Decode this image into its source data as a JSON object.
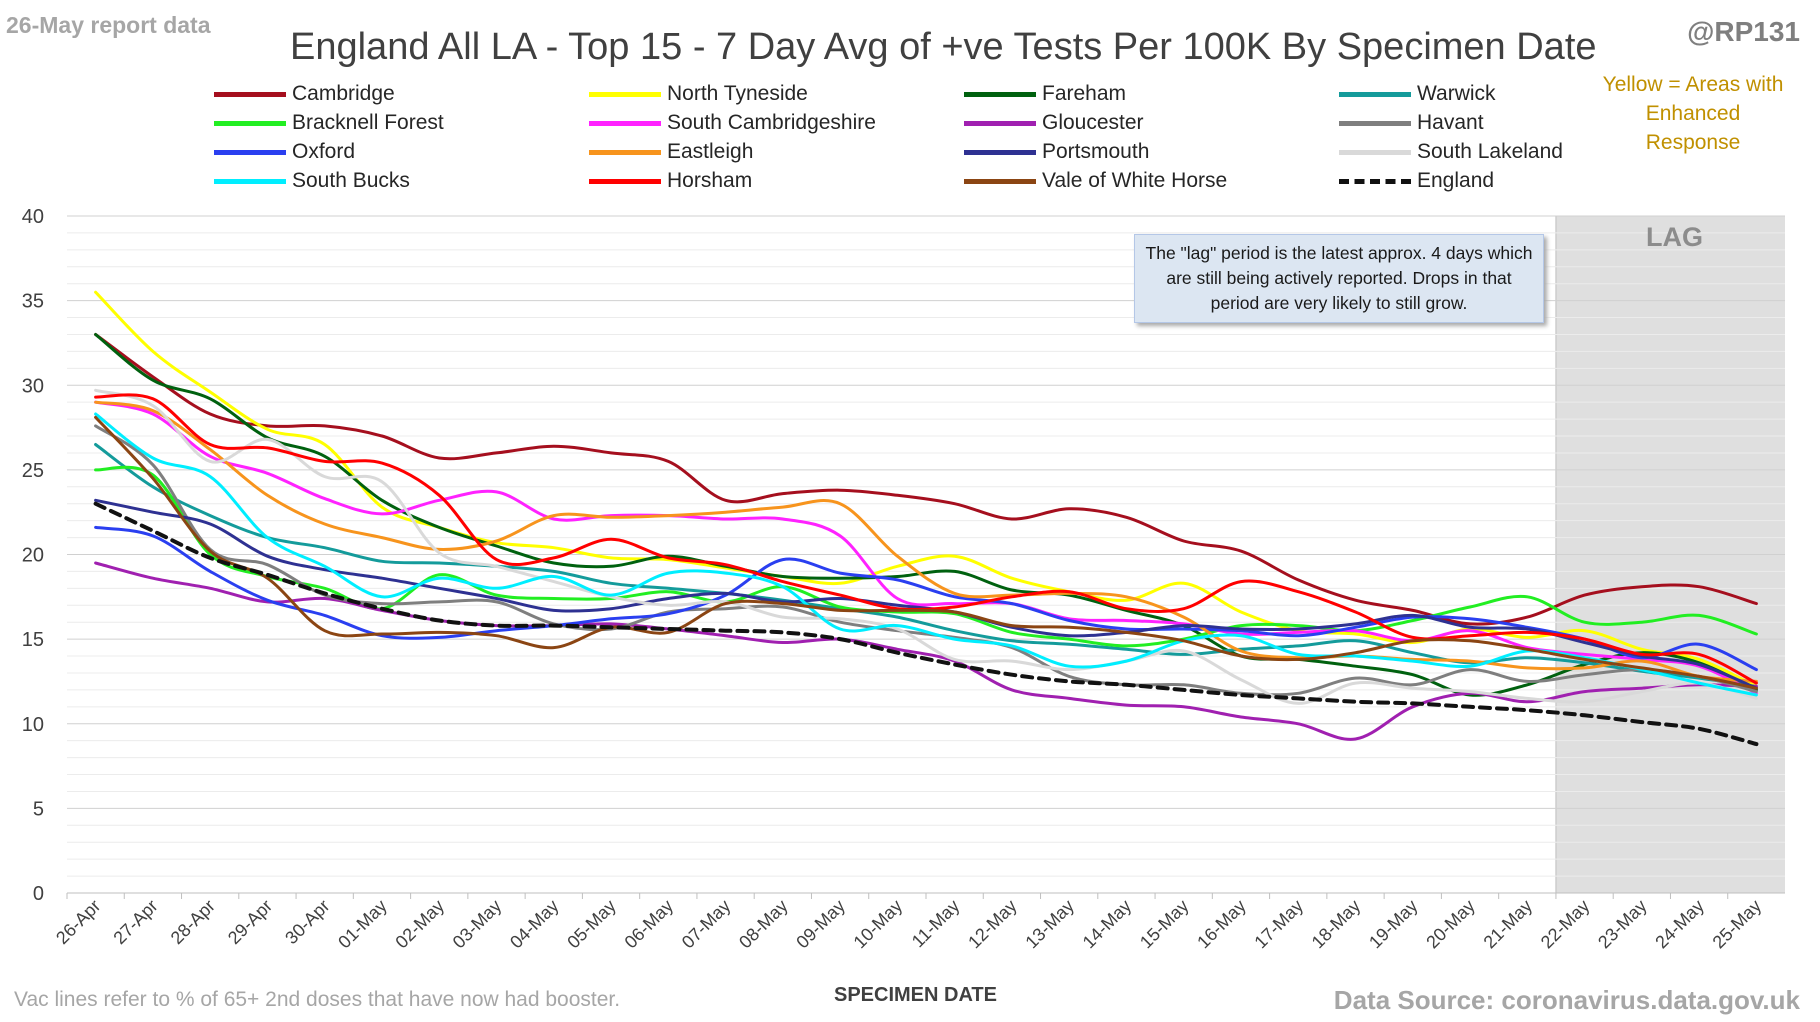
{
  "header": {
    "report_date": "26-May report data",
    "title": "England All LA - Top 15 - 7 Day Avg of +ve Tests Per 100K By Specimen Date",
    "handle": "@RP131",
    "yellow_note": "Yellow = Areas with Enhanced Response"
  },
  "footer": {
    "vac_note": "Vac lines refer to % of 65+ 2nd doses that have now had booster.",
    "source": "Data Source: coronavirus.data.gov.uk"
  },
  "annotations": {
    "lag_label": "LAG",
    "lag_note": "The \"lag\" period is the latest approx. 4 days which are still being actively reported. Drops in that period are very likely to still grow."
  },
  "chart_data": {
    "type": "line",
    "title": "England All LA - Top 15 - 7 Day Avg of +ve Tests Per 100K By Specimen Date",
    "xlabel": "SPECIMEN DATE",
    "ylabel": "",
    "ylim": [
      0,
      40
    ],
    "yticks": [
      0,
      5,
      10,
      15,
      20,
      25,
      30,
      35,
      40
    ],
    "grid": true,
    "legend_position": "top",
    "lag_start": "22-May",
    "x": [
      "26-Apr",
      "27-Apr",
      "28-Apr",
      "29-Apr",
      "30-Apr",
      "01-May",
      "02-May",
      "03-May",
      "04-May",
      "05-May",
      "06-May",
      "07-May",
      "08-May",
      "09-May",
      "10-May",
      "11-May",
      "12-May",
      "13-May",
      "14-May",
      "15-May",
      "16-May",
      "17-May",
      "18-May",
      "19-May",
      "20-May",
      "21-May",
      "22-May",
      "23-May",
      "24-May",
      "25-May"
    ],
    "series": [
      {
        "name": "Cambridge",
        "color": "#a50f1e",
        "dashed": false,
        "values": [
          33.0,
          30.5,
          28.3,
          27.6,
          27.6,
          27.0,
          25.7,
          26.0,
          26.4,
          26.0,
          25.5,
          23.2,
          23.6,
          23.8,
          23.5,
          23.0,
          22.1,
          22.7,
          22.2,
          20.8,
          20.2,
          18.5,
          17.3,
          16.7,
          15.9,
          16.3,
          17.6,
          18.1,
          18.1,
          17.1
        ]
      },
      {
        "name": "North Tyneside",
        "color": "#ffff00",
        "dashed": false,
        "values": [
          35.5,
          32.0,
          29.6,
          27.4,
          26.5,
          22.8,
          21.6,
          20.7,
          20.4,
          19.8,
          19.7,
          19.2,
          18.7,
          18.3,
          19.3,
          19.9,
          18.6,
          17.8,
          17.3,
          18.3,
          16.6,
          15.5,
          15.3,
          14.8,
          15.6,
          15.1,
          15.5,
          14.4,
          13.8,
          12.2
        ]
      },
      {
        "name": "Fareham",
        "color": "#00610f",
        "dashed": false,
        "values": [
          33.0,
          30.3,
          29.2,
          26.9,
          25.8,
          23.2,
          21.6,
          20.5,
          19.5,
          19.3,
          19.9,
          19.3,
          18.7,
          18.6,
          18.7,
          19.0,
          17.9,
          17.6,
          16.7,
          15.8,
          14.0,
          13.8,
          13.4,
          12.9,
          11.7,
          12.3,
          13.5,
          14.2,
          13.6,
          12.0
        ]
      },
      {
        "name": "Warwick",
        "color": "#149b9b",
        "dashed": false,
        "values": [
          26.5,
          24.0,
          22.3,
          21.0,
          20.4,
          19.6,
          19.5,
          19.3,
          19.0,
          18.3,
          18.0,
          17.7,
          17.3,
          16.8,
          16.3,
          15.5,
          14.9,
          14.7,
          14.4,
          14.1,
          14.4,
          14.6,
          14.9,
          14.2,
          13.6,
          13.9,
          13.6,
          13.1,
          12.7,
          12.2
        ]
      },
      {
        "name": "Bracknell Forest",
        "color": "#22ee22",
        "dashed": false,
        "values": [
          25.0,
          24.7,
          20.0,
          18.7,
          18.0,
          16.8,
          18.8,
          17.6,
          17.4,
          17.4,
          17.8,
          17.2,
          18.1,
          16.9,
          16.6,
          16.5,
          15.4,
          15.0,
          14.6,
          15.0,
          15.8,
          15.8,
          15.5,
          16.1,
          16.9,
          17.5,
          16.0,
          16.0,
          16.4,
          15.3
        ]
      },
      {
        "name": "South Cambridgeshire",
        "color": "#ff22ff",
        "dashed": false,
        "values": [
          29.0,
          28.3,
          25.8,
          24.8,
          23.3,
          22.4,
          23.2,
          23.7,
          22.1,
          22.3,
          22.3,
          22.1,
          22.1,
          21.1,
          17.4,
          17.1,
          17.1,
          16.2,
          16.1,
          15.9,
          15.3,
          15.4,
          15.5,
          14.9,
          15.5,
          14.5,
          14.1,
          13.8,
          13.4,
          11.8
        ]
      },
      {
        "name": "Gloucester",
        "color": "#a020b0",
        "dashed": false,
        "values": [
          19.5,
          18.6,
          18.0,
          17.2,
          17.4,
          16.7,
          16.1,
          15.8,
          15.8,
          15.9,
          15.6,
          15.2,
          14.8,
          15.0,
          14.4,
          13.7,
          12.0,
          11.5,
          11.1,
          11.0,
          10.4,
          10.0,
          9.1,
          11.0,
          11.8,
          11.3,
          11.9,
          12.1,
          12.3,
          12.2
        ]
      },
      {
        "name": "Havant",
        "color": "#7f7f7f",
        "dashed": false,
        "values": [
          27.6,
          25.3,
          20.3,
          19.4,
          17.6,
          17.1,
          17.2,
          17.2,
          15.9,
          15.6,
          16.6,
          16.8,
          16.9,
          16.0,
          15.5,
          15.1,
          14.5,
          12.8,
          12.3,
          12.3,
          11.8,
          11.8,
          12.7,
          12.3,
          13.2,
          12.5,
          12.9,
          13.2,
          12.8,
          11.9
        ]
      },
      {
        "name": "Oxford",
        "color": "#2a3ff0",
        "dashed": false,
        "values": [
          21.6,
          21.1,
          19.0,
          17.3,
          16.4,
          15.2,
          15.1,
          15.5,
          15.8,
          16.2,
          16.5,
          17.6,
          19.7,
          18.9,
          18.5,
          17.5,
          17.1,
          16.1,
          15.6,
          15.6,
          15.5,
          15.2,
          15.7,
          16.3,
          16.2,
          15.7,
          15.0,
          13.9,
          14.7,
          13.2
        ]
      },
      {
        "name": "Eastleigh",
        "color": "#f7941d",
        "dashed": false,
        "values": [
          29.0,
          28.5,
          26.2,
          23.5,
          21.8,
          21.0,
          20.3,
          20.8,
          22.3,
          22.2,
          22.3,
          22.5,
          22.8,
          23.0,
          19.9,
          17.7,
          17.6,
          17.7,
          17.5,
          16.3,
          14.3,
          13.9,
          14.0,
          13.8,
          13.7,
          13.3,
          13.3,
          13.7,
          12.8,
          12.5
        ]
      },
      {
        "name": "Portsmouth",
        "color": "#2e3192",
        "dashed": false,
        "values": [
          23.2,
          22.5,
          21.8,
          19.9,
          19.1,
          18.6,
          18.0,
          17.4,
          16.7,
          16.8,
          17.4,
          17.7,
          17.2,
          17.4,
          17.0,
          16.6,
          15.7,
          15.2,
          15.4,
          15.8,
          15.6,
          15.6,
          15.9,
          16.4,
          15.7,
          15.6,
          14.8,
          14.0,
          13.5,
          12.1
        ]
      },
      {
        "name": "South Lakeland",
        "color": "#d9d9d9",
        "dashed": false,
        "values": [
          29.7,
          28.8,
          25.5,
          26.8,
          24.6,
          24.3,
          20.1,
          19.3,
          18.4,
          17.5,
          17.0,
          17.2,
          16.3,
          16.2,
          15.6,
          13.8,
          13.7,
          13.2,
          13.7,
          14.3,
          12.6,
          11.2,
          12.4,
          12.1,
          11.9,
          11.5,
          11.3,
          11.9,
          12.4,
          11.5
        ]
      },
      {
        "name": "South Bucks",
        "color": "#00eeff",
        "dashed": false,
        "values": [
          28.3,
          25.7,
          24.6,
          21.0,
          19.3,
          17.5,
          18.6,
          18.0,
          18.7,
          17.6,
          18.9,
          18.9,
          18.1,
          15.6,
          15.8,
          15.0,
          14.6,
          13.4,
          13.7,
          14.9,
          15.2,
          14.1,
          14.0,
          13.7,
          13.4,
          14.3,
          13.9,
          13.2,
          12.4,
          11.7
        ]
      },
      {
        "name": "Horsham",
        "color": "#ff0000",
        "dashed": false,
        "values": [
          29.3,
          29.2,
          26.5,
          26.3,
          25.5,
          25.4,
          23.5,
          19.7,
          19.8,
          20.9,
          19.8,
          19.4,
          18.4,
          17.6,
          16.8,
          16.9,
          17.5,
          17.8,
          16.8,
          16.8,
          18.4,
          17.8,
          16.6,
          15.1,
          15.2,
          15.4,
          15.0,
          14.1,
          14.1,
          12.4
        ]
      },
      {
        "name": "Vale of White Horse",
        "color": "#8b4513",
        "dashed": false,
        "values": [
          28.1,
          24.5,
          20.2,
          18.6,
          15.5,
          15.3,
          15.4,
          15.2,
          14.5,
          15.7,
          15.4,
          17.1,
          17.1,
          16.7,
          16.7,
          16.6,
          15.8,
          15.7,
          15.4,
          14.9,
          14.0,
          13.8,
          14.2,
          14.9,
          14.9,
          14.4,
          13.8,
          13.3,
          12.8,
          12.1
        ]
      },
      {
        "name": "England",
        "color": "#111111",
        "dashed": true,
        "values": [
          23.0,
          21.4,
          19.8,
          18.8,
          17.7,
          16.8,
          16.1,
          15.8,
          15.8,
          15.7,
          15.6,
          15.5,
          15.4,
          15.0,
          14.2,
          13.5,
          12.9,
          12.5,
          12.3,
          12.0,
          11.7,
          11.5,
          11.3,
          11.2,
          11.0,
          10.8,
          10.5,
          10.1,
          9.7,
          8.8
        ]
      }
    ]
  }
}
